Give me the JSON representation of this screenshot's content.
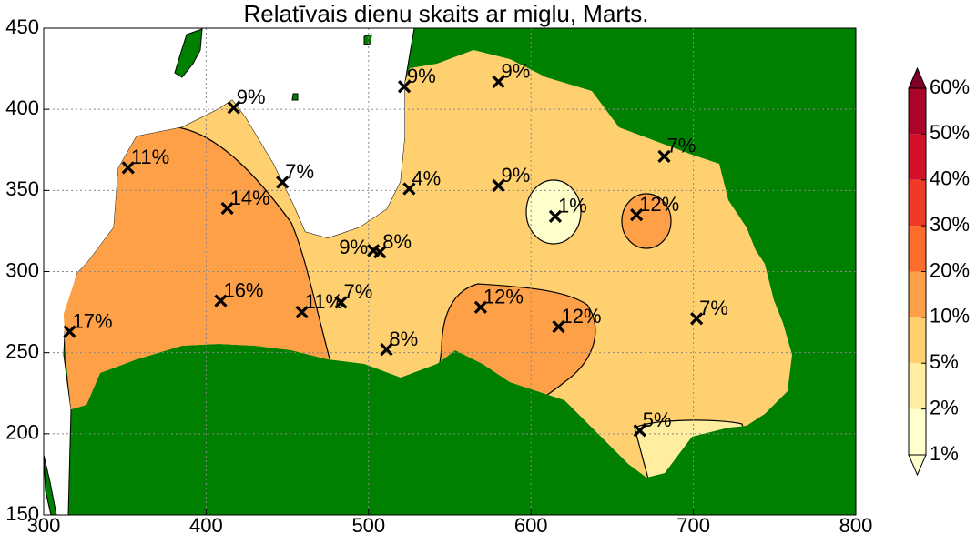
{
  "chart_data": {
    "type": "contour-map",
    "title": "Relatīvais dienu skaits ar miglu, Marts.",
    "xlim": [
      300,
      800
    ],
    "ylim": [
      150,
      450
    ],
    "xticks": [
      300,
      400,
      500,
      600,
      700,
      800
    ],
    "yticks": [
      150,
      200,
      250,
      300,
      350,
      400,
      450
    ],
    "grid": true,
    "stations": {
      "x": [
        316,
        352,
        413,
        409,
        417,
        447,
        459,
        483,
        511,
        503,
        507,
        522,
        525,
        569,
        580,
        580,
        615,
        617,
        665,
        682,
        702,
        667
      ],
      "y": [
        263,
        364,
        339,
        282,
        401,
        355,
        275,
        281,
        252,
        313,
        312,
        414,
        351,
        278,
        417,
        353,
        334,
        266,
        335,
        371,
        271,
        202
      ],
      "values": [
        17,
        11,
        14,
        16,
        9,
        7,
        11,
        7,
        8,
        9,
        8,
        9,
        4,
        12,
        9,
        9,
        1,
        12,
        12,
        7,
        7,
        5
      ],
      "value_labels": [
        "17%",
        "11%",
        "14%",
        "16%",
        "9%",
        "7%",
        "11%",
        "7%",
        "8%",
        "9%",
        "8%",
        "9%",
        "4%",
        "12%",
        "9%",
        "9%",
        "1%",
        "12%",
        "12%",
        "7%",
        "7%",
        "5%"
      ]
    },
    "colorbar": {
      "levels": [
        1,
        2,
        5,
        10,
        20,
        30,
        40,
        50,
        60
      ],
      "labels": [
        "1%",
        "2%",
        "5%",
        "10%",
        "20%",
        "30%",
        "40%",
        "50%",
        "60%"
      ],
      "colors": [
        "#ffffcc",
        "#ffeda0",
        "#fed06f",
        "#fda047",
        "#fc6d2d",
        "#ee3a26",
        "#d4112a",
        "#aa0428",
        "#7e0026"
      ]
    }
  }
}
